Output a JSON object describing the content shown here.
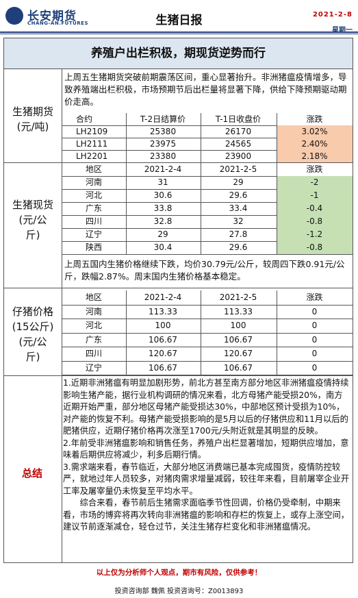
{
  "header": {
    "logo_name": "长安期货",
    "logo_sub": "CHANG-AN.FUTURES",
    "title": "生猪日报",
    "date": "2021-2-8",
    "weekday": "星期一"
  },
  "banner": "养殖户出栏积极，期现货逆势而行",
  "futures": {
    "label": "生猪期货\n(元/吨)",
    "commentary": "上周五生猪期货突破前期震荡区间，重心显著抬升。非洲猪瘟疫情增多，导致养殖端出栏积极，市场预期节后出栏量将显著下降，供给下降预期驱动期价走高。",
    "headers": [
      "合约",
      "T-2日结算价",
      "T-1日收盘价",
      "涨跌"
    ],
    "rows": [
      [
        "LH2109",
        "25380",
        "26170",
        "3.02%"
      ],
      [
        "LH2111",
        "23975",
        "24565",
        "2.40%"
      ],
      [
        "LH2201",
        "23380",
        "23900",
        "2.18%"
      ]
    ]
  },
  "spot": {
    "label": "生猪现货\n(元/公\n斤)",
    "headers": [
      "地区",
      "2021-2-4",
      "2021-2-5",
      "涨跌"
    ],
    "rows": [
      [
        "河南",
        "31",
        "29",
        "-2"
      ],
      [
        "河北",
        "30.6",
        "29.6",
        "-1"
      ],
      [
        "广东",
        "33.8",
        "33.4",
        "-0.4"
      ],
      [
        "四川",
        "32.8",
        "32",
        "-0.8"
      ],
      [
        "辽宁",
        "29",
        "27.8",
        "-1.2"
      ],
      [
        "陕西",
        "30.4",
        "29.6",
        "-0.8"
      ]
    ],
    "commentary": "上周五国内生猪价格继续下跌，均价30.79元/公斤，较周四下跌0.91元/公斤，跌幅2.87%。周末国内生猪价格基本稳定。"
  },
  "piglet": {
    "label": "仔猪价格\n(15公斤)\n(元/公\n斤)",
    "headers": [
      "地区",
      "2021-2-4",
      "2021-2-5",
      "涨跌"
    ],
    "rows": [
      [
        "河南",
        "113.33",
        "113.33",
        "0"
      ],
      [
        "河北",
        "100",
        "100",
        "0"
      ],
      [
        "广东",
        "106.67",
        "106.67",
        "0"
      ],
      [
        "四川",
        "120.67",
        "120.67",
        "0"
      ],
      [
        "辽宁",
        "106.67",
        "106.67",
        "0"
      ]
    ]
  },
  "summary": {
    "label": "总结",
    "p1": "1.近期非洲猪瘟有明显加剧形势，前北方甚至南方部分地区非洲猪瘟疫情持续影响生猪产能，据行业机构调研的情况来看，北方母猪产能受损20%，南方近期开始严重，部分地区母猪产能受损达30%，中部地区预计受损为10%，对产能的恢复不利。母猪产能受损影响的是5月以后的仔猪供应和11月以后的肥猪供应，近期仔猪价格再次涨至1700元/头附近就是其明显的反映。",
    "p2": "2.年前受非洲猪瘟影响和销售任务，养殖户出栏显著增加，短期供应增加，意味着后期供应将减少，利多后期行情。",
    "p3": "3.需求端来看，春节临近，大部分地区消费端已基本完成囤货，疫情防控较严，就地过年人员较多，对猪肉需求增量减弱，较往年来看，目前屠宰企业开工率及屠宰量仍未恢复至平均水平。",
    "p4": "综合来看，春节前后生猪需求面临季节性回调，价格仍受牵制，中期来看，市场的博弈将再次转向非洲猪瘟的影响和存栏的恢复上，或存上涨空间，建议节前逐渐减仓，轻仓过节，关注生猪存栏变化和非洲猪瘟情况。"
  },
  "footer": {
    "disclaimer": "以上仅为分析师个人观点，期市有风险，仅供参考！",
    "advisor": "投资咨询部  魏佩    投资咨询号：Z0013893"
  },
  "colors": {
    "brand": "#1f3f7a",
    "up": "#f8cbad",
    "down": "#c6e0b4",
    "banner_bg": "#dce6f0",
    "alert": "#c00000"
  }
}
